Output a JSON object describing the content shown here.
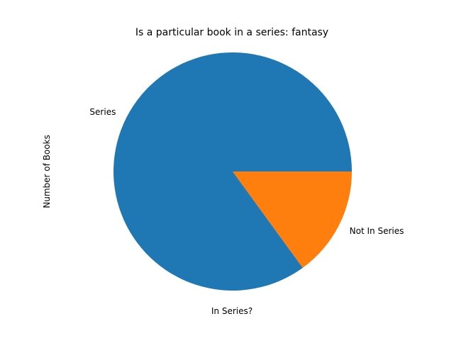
{
  "chart_data": {
    "type": "pie",
    "title": "Is a particular book in a series: fantasy",
    "xlabel": "In Series?",
    "ylabel": "Number of Books",
    "grid": false,
    "legend": "none",
    "slices": [
      {
        "label": "Series",
        "value": 85,
        "color": "#1f77b4"
      },
      {
        "label": "Not In Series",
        "value": 15,
        "color": "#ff7f0e"
      }
    ]
  }
}
